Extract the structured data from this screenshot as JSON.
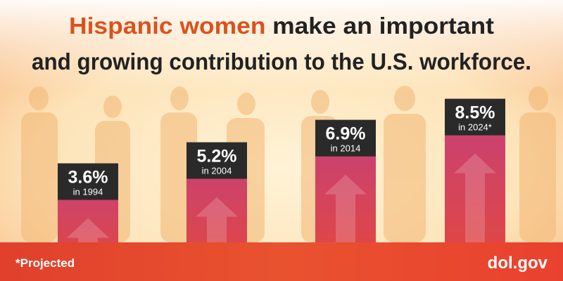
{
  "chart_data": {
    "type": "bar",
    "title_highlight": "Hispanic women",
    "title_rest": "make an important",
    "title_line2": "and growing contribution to the U.S. workforce.",
    "categories": [
      "in 1994",
      "in 2004",
      "in 2014",
      "in 2024*"
    ],
    "values": [
      3.6,
      5.2,
      6.9,
      8.5
    ],
    "value_labels": [
      "3.6%",
      "5.2%",
      "6.9%",
      "8.5%"
    ],
    "label_box_color": "#2a2a2a",
    "bar_colors": [
      "#c4407c",
      "#e5483a"
    ],
    "highlight_color": "#d9531e",
    "footnote": "*Projected",
    "source": "dol.gov"
  }
}
